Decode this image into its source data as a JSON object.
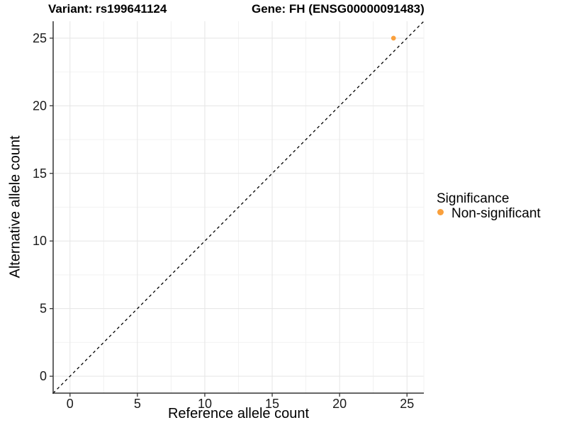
{
  "colors": {
    "point_orange": "#FAA03C",
    "axis": "#333333",
    "grid_major": "#e5e5e5",
    "grid_minor": "#f2f2f2",
    "dashed_line": "#000000",
    "background": "#ffffff"
  },
  "chart_data": {
    "type": "scatter",
    "title_parts": {
      "variant": "Variant: rs199641124",
      "gene": "Gene: FH (ENSG00000091483)"
    },
    "xlabel": "Reference allele count",
    "ylabel": "Alternative allele count",
    "xlim": [
      -1.25,
      26.25
    ],
    "ylim": [
      -1.25,
      26.25
    ],
    "xticks": [
      0,
      5,
      10,
      15,
      20,
      25
    ],
    "yticks": [
      0,
      5,
      10,
      15,
      20,
      25
    ],
    "xticks_minor": [
      2.5,
      7.5,
      12.5,
      17.5,
      22.5
    ],
    "yticks_minor": [
      2.5,
      7.5,
      12.5,
      17.5,
      22.5
    ],
    "grid": true,
    "reference_line": {
      "equation": "y = x",
      "style": "dashed",
      "from": [
        -1.25,
        -1.25
      ],
      "to": [
        26.25,
        26.25
      ]
    },
    "series": [
      {
        "name": "Non-significant",
        "color": "#FAA03C",
        "points": [
          {
            "x": 24,
            "y": 25
          }
        ]
      }
    ],
    "legend": {
      "title": "Significance",
      "position": "right",
      "items": [
        {
          "label": "Non-significant",
          "color": "#FAA03C"
        }
      ]
    }
  }
}
